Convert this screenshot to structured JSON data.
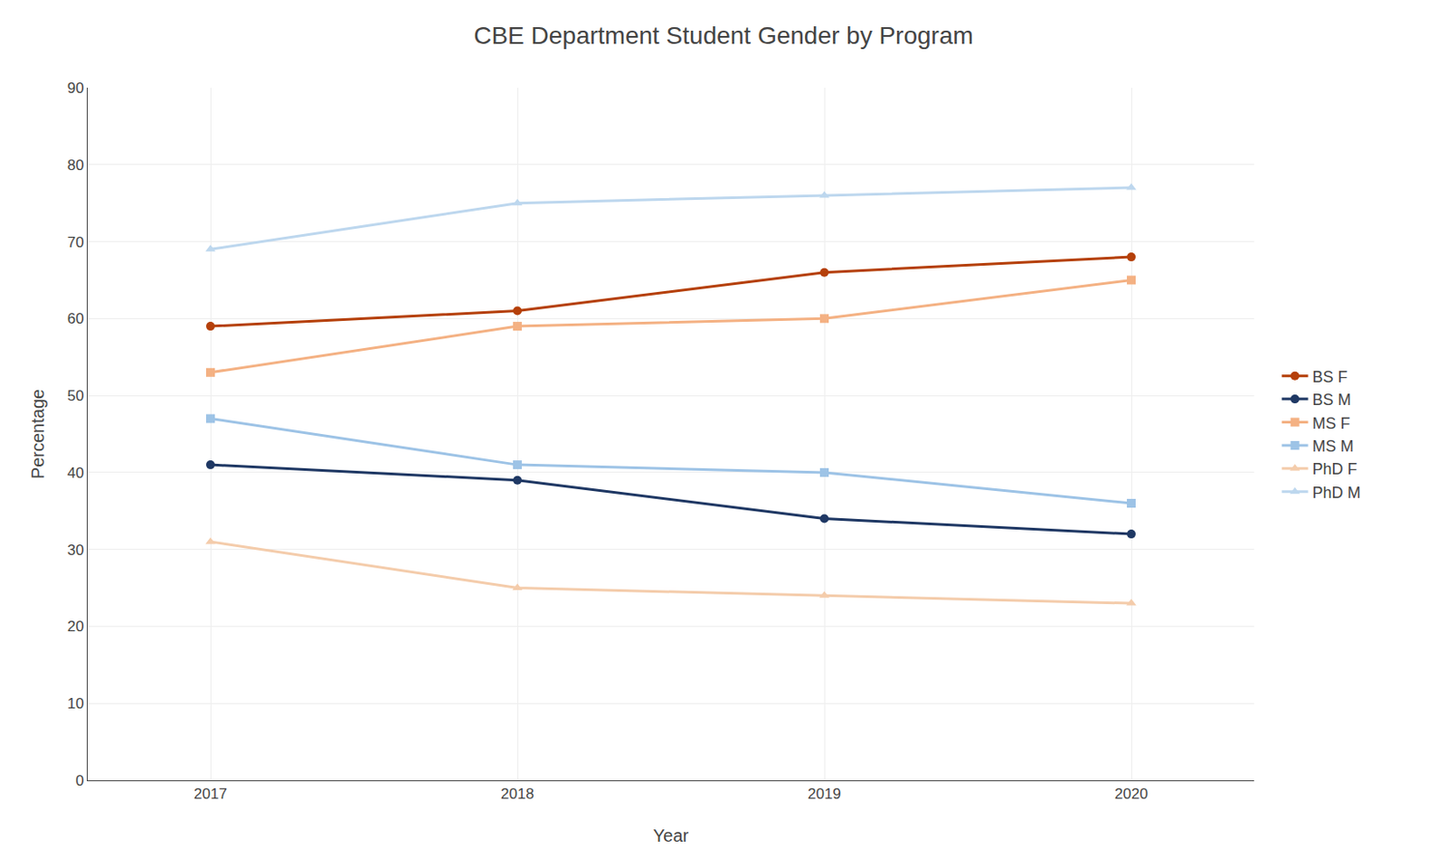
{
  "chart_data": {
    "type": "line",
    "title": "CBE Department Student Gender by Program",
    "x_label": "Year",
    "y_label": "Percentage",
    "x": [
      2017,
      2018,
      2019,
      2020
    ],
    "series": [
      {
        "name": "BS F",
        "values": [
          59,
          61,
          66,
          68
        ],
        "color": "#B5400A",
        "marker": "circle",
        "line_style": "solid"
      },
      {
        "name": "BS M",
        "values": [
          41,
          39,
          34,
          32
        ],
        "color": "#1F3864",
        "marker": "circle",
        "line_style": "solid"
      },
      {
        "name": "MS F",
        "values": [
          53,
          59,
          60,
          65
        ],
        "color": "#F4B183",
        "marker": "square",
        "line_style": "solid"
      },
      {
        "name": "MS M",
        "values": [
          47,
          41,
          40,
          36
        ],
        "color": "#9DC3E6",
        "marker": "square",
        "line_style": "solid"
      },
      {
        "name": "PhD F",
        "values": [
          31,
          25,
          24,
          23
        ],
        "color": "#F4CCAB",
        "marker": "triangle",
        "line_style": "solid"
      },
      {
        "name": "PhD M",
        "values": [
          69,
          75,
          76,
          77
        ],
        "color": "#BDD7EE",
        "marker": "triangle",
        "line_style": "solid"
      }
    ],
    "xlim": [
      2016.6,
      2020.4
    ],
    "xticks": [
      2017,
      2018,
      2019,
      2020
    ],
    "ylim": [
      0,
      90
    ],
    "yticks": [
      0,
      10,
      20,
      30,
      40,
      50,
      60,
      70,
      80,
      90
    ],
    "grid": true,
    "legend": "right"
  }
}
